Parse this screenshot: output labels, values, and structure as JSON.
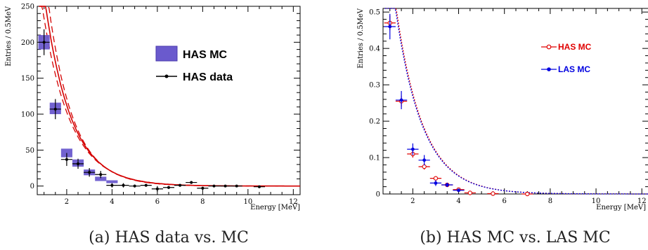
{
  "chart_data": [
    {
      "type": "scatter",
      "ylabel": "Entries / 0.5MeV",
      "xlabel": "Energy [MeV]",
      "xlim": [
        0.7,
        12.3
      ],
      "ylim": [
        -12,
        250
      ],
      "xticks": [
        2,
        4,
        6,
        8,
        10,
        12
      ],
      "yticks": [
        0,
        50,
        100,
        150,
        200,
        250
      ],
      "caption": "(a) HAS data vs. MC",
      "legend_position": "top-right",
      "colors": {
        "mc_fill": "#6a5acd",
        "data": "#000000",
        "curve": "#d40000"
      },
      "series": [
        {
          "name": "HAS MC",
          "style": "box",
          "x": [
            1.0,
            1.5,
            2.0,
            2.5,
            3.0,
            3.5,
            4.0
          ],
          "y": [
            200,
            108,
            46,
            32,
            19,
            10,
            6
          ],
          "yerr": [
            10,
            8,
            6,
            5,
            4,
            3,
            2
          ]
        },
        {
          "name": "HAS data",
          "style": "points",
          "x": [
            1.0,
            1.5,
            2.0,
            2.5,
            3.0,
            3.5,
            4.0,
            4.5,
            5.0,
            5.5,
            6.0,
            6.5,
            7.0,
            7.5,
            8.0,
            8.5,
            9.0,
            9.5,
            10.5
          ],
          "y": [
            200,
            107,
            37,
            31,
            19,
            16,
            1,
            1,
            0,
            1,
            -4,
            -2,
            1,
            5,
            -3,
            0,
            0,
            0,
            -1
          ],
          "yerr": [
            18,
            14,
            9,
            7,
            6,
            5,
            3,
            3,
            2,
            2,
            4,
            2,
            2,
            2,
            2,
            1,
            1,
            1,
            1
          ]
        }
      ],
      "curves": [
        {
          "amp": 630,
          "decay": 1.16,
          "style": "solid"
        },
        {
          "amp": 750,
          "decay": 1.1,
          "style": "dashed"
        },
        {
          "amp": 530,
          "decay": 1.22,
          "style": "dashed"
        }
      ]
    },
    {
      "type": "scatter",
      "ylabel": "Entries / 0.5MeV",
      "xlabel": "Energy [MeV]",
      "xlim": [
        0.7,
        12.3
      ],
      "ylim": [
        0,
        0.51
      ],
      "xticks": [
        2,
        4,
        6,
        8,
        10,
        12
      ],
      "yticks": [
        0,
        0.1,
        0.2,
        0.3,
        0.4,
        0.5
      ],
      "caption": "(b) HAS MC vs. LAS MC",
      "legend_position": "top-right",
      "colors": {
        "has": "#e00000",
        "las": "#0000e0"
      },
      "series": [
        {
          "name": "HAS MC",
          "style": "open-circle",
          "x": [
            1.0,
            1.5,
            2.0,
            2.5,
            3.0,
            3.5,
            4.0,
            4.5,
            5.5,
            7.0
          ],
          "y": [
            0.47,
            0.255,
            0.11,
            0.075,
            0.043,
            0.025,
            0.012,
            0.003,
            0.001,
            0.0
          ],
          "yerr": [
            0.02,
            0.015,
            0.01,
            0.008,
            0.006,
            0.005,
            0.003,
            0.002,
            0.001,
            0.0
          ]
        },
        {
          "name": "LAS MC",
          "style": "filled-circle",
          "x": [
            1.0,
            1.5,
            2.0,
            2.5,
            3.0,
            3.5,
            4.0
          ],
          "y": [
            0.46,
            0.258,
            0.123,
            0.093,
            0.03,
            0.025,
            0.01
          ],
          "yerr": [
            0.035,
            0.025,
            0.016,
            0.014,
            0.008,
            0.006,
            0.004
          ]
        }
      ],
      "curves": [
        {
          "amp": 1.5,
          "decay": 1.18,
          "style": "dotted",
          "color": "#e00000"
        },
        {
          "amp": 1.46,
          "decay": 1.18,
          "style": "dotted",
          "color": "#0000e0"
        }
      ]
    }
  ]
}
